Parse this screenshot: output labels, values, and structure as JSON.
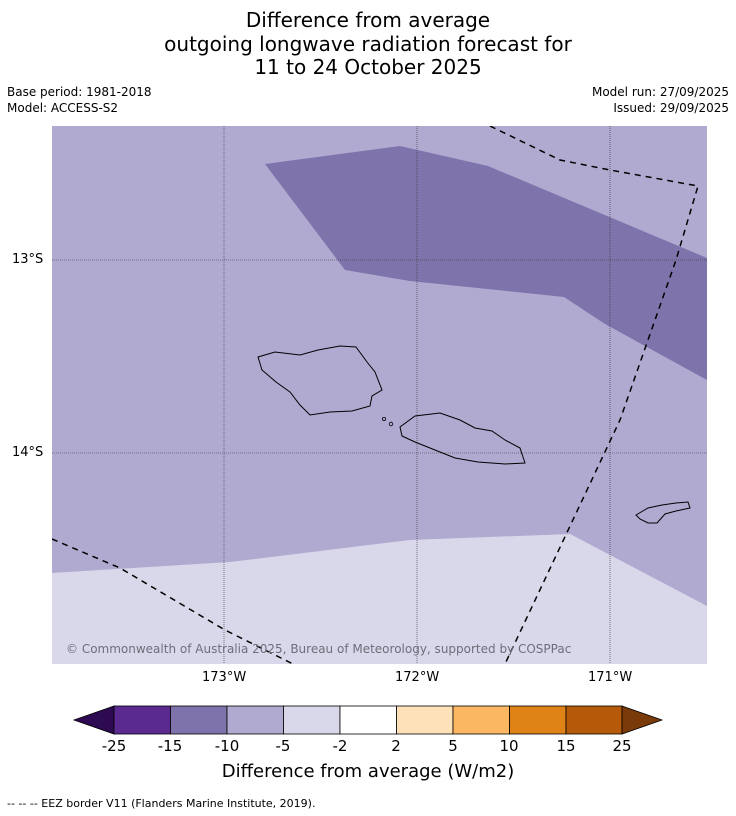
{
  "title": {
    "line1": "Difference from average",
    "line2": "outgoing longwave radiation forecast for",
    "line3": "11 to 24 October 2025"
  },
  "meta": {
    "base_period": "Base period: 1981-2018",
    "model": "Model: ACCESS-S2",
    "model_run": "Model run: 27/09/2025",
    "issued": "Issued: 29/09/2025"
  },
  "map": {
    "lat_labels": [
      "13°S",
      "14°S"
    ],
    "lon_labels": [
      "173°W",
      "172°W",
      "171°W"
    ],
    "copyright": "© Commonwealth of Australia 2025, Bureau of Meteorology, supported by COSPPac",
    "colors": {
      "anomaly_minus_5_to_minus_10": "#b0aad1",
      "anomaly_minus_10_to_minus_15": "#7f73ab",
      "anomaly_minus_2_to_minus_5": "#d8d8ea"
    }
  },
  "colorbar": {
    "ticks": [
      "-25",
      "-15",
      "-10",
      "-5",
      "-2",
      "2",
      "5",
      "10",
      "15",
      "25"
    ],
    "colors": [
      "#2d0a52",
      "#5b2a90",
      "#7f73ab",
      "#b0aad1",
      "#d8d8ea",
      "#ffffff",
      "#fde1b8",
      "#fbb761",
      "#e08317",
      "#b45a08",
      "#7a3a0a"
    ],
    "title": "Difference from average (W/m2)"
  },
  "footer": "--  --  -- EEZ border V11 (Flanders Marine Institute, 2019)."
}
